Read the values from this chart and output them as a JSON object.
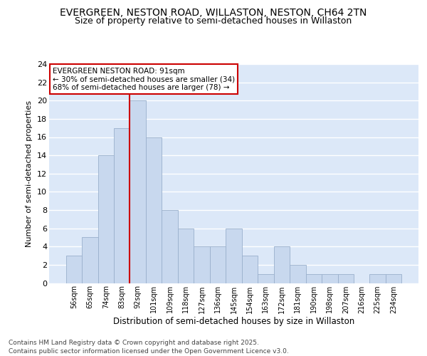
{
  "title_line1": "EVERGREEN, NESTON ROAD, WILLASTON, NESTON, CH64 2TN",
  "title_line2": "Size of property relative to semi-detached houses in Willaston",
  "xlabel": "Distribution of semi-detached houses by size in Willaston",
  "ylabel": "Number of semi-detached properties",
  "categories": [
    "56sqm",
    "65sqm",
    "74sqm",
    "83sqm",
    "92sqm",
    "101sqm",
    "109sqm",
    "118sqm",
    "127sqm",
    "136sqm",
    "145sqm",
    "154sqm",
    "163sqm",
    "172sqm",
    "181sqm",
    "190sqm",
    "198sqm",
    "207sqm",
    "216sqm",
    "225sqm",
    "234sqm"
  ],
  "values": [
    3,
    5,
    14,
    17,
    20,
    16,
    8,
    6,
    4,
    4,
    6,
    3,
    1,
    4,
    2,
    1,
    1,
    1,
    0,
    1,
    1
  ],
  "bar_color": "#c8d8ee",
  "bar_edge_color": "#9ab0cc",
  "vline_color": "#cc0000",
  "annotation_title": "EVERGREEN NESTON ROAD: 91sqm",
  "annotation_line1": "← 30% of semi-detached houses are smaller (34)",
  "annotation_line2": "68% of semi-detached houses are larger (78) →",
  "annotation_box_color": "#cc0000",
  "ylim": [
    0,
    24
  ],
  "yticks": [
    0,
    2,
    4,
    6,
    8,
    10,
    12,
    14,
    16,
    18,
    20,
    22,
    24
  ],
  "background_color": "#dce8f8",
  "footer": "Contains HM Land Registry data © Crown copyright and database right 2025.\nContains public sector information licensed under the Open Government Licence v3.0.",
  "grid_color": "#ffffff",
  "title_fontsize": 10,
  "subtitle_fontsize": 9
}
